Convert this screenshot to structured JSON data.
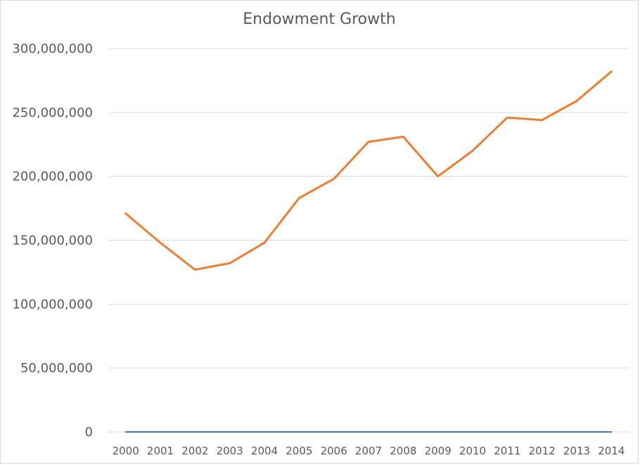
{
  "chart_data": {
    "type": "line",
    "title": "Endowment Growth",
    "xlabel": "",
    "ylabel": "",
    "categories": [
      "2000",
      "2001",
      "2002",
      "2003",
      "2004",
      "2005",
      "2006",
      "2007",
      "2008",
      "2009",
      "2010",
      "2011",
      "2012",
      "2013",
      "2014"
    ],
    "y_ticks": [
      "0",
      "50,000,000",
      "100,000,000",
      "150,000,000",
      "200,000,000",
      "250,000,000",
      "300,000,000"
    ],
    "ylim": [
      0,
      300000000
    ],
    "grid": true,
    "legend": "none",
    "series": [
      {
        "color": "#4472c4",
        "values": [
          0,
          0,
          0,
          0,
          0,
          0,
          0,
          0,
          0,
          0,
          0,
          0,
          0,
          0,
          0
        ]
      },
      {
        "color": "#ed7d31",
        "values": [
          171000000,
          148000000,
          127000000,
          132000000,
          148000000,
          183000000,
          198000000,
          227000000,
          231000000,
          200000000,
          220000000,
          246000000,
          244000000,
          259000000,
          282000000
        ]
      }
    ]
  },
  "colors": {
    "gridline": "#d9d9d9",
    "text": "#595959"
  }
}
